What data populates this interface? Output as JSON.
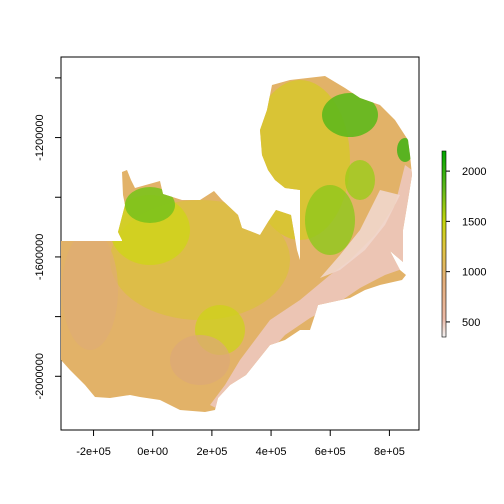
{
  "map": {
    "x_ticks": [
      {
        "value": -200000,
        "label": "-2e+05"
      },
      {
        "value": 0,
        "label": "0e+00"
      },
      {
        "value": 200000,
        "label": "2e+05"
      },
      {
        "value": 400000,
        "label": "4e+05"
      },
      {
        "value": 600000,
        "label": "6e+05"
      },
      {
        "value": 800000,
        "label": "8e+05"
      }
    ],
    "y_ticks": [
      {
        "value": -1200000,
        "label": "-1200000"
      },
      {
        "value": -1600000,
        "label": "-1600000"
      },
      {
        "value": -2000000,
        "label": "-2000000"
      }
    ],
    "xlim": [
      -310000,
      900000
    ],
    "ylim": [
      -2180000,
      -930000
    ],
    "legend": {
      "range": [
        350,
        2200
      ],
      "ticks": [
        {
          "value": 500,
          "label": "500"
        },
        {
          "value": 1000,
          "label": "1000"
        },
        {
          "value": 1500,
          "label": "1500"
        },
        {
          "value": 2000,
          "label": "2000"
        }
      ],
      "colors": [
        "#f2f2f2",
        "#ebb9a6",
        "#e3ae7a",
        "#dfc440",
        "#c4d60c",
        "#5fb81c",
        "#00a600"
      ]
    },
    "palette": {
      "low": "#eec4b6",
      "mid_low": "#e0a978",
      "mid": "#dcbe3a",
      "mid_high": "#cfd512",
      "high": "#6cbd1d"
    }
  }
}
